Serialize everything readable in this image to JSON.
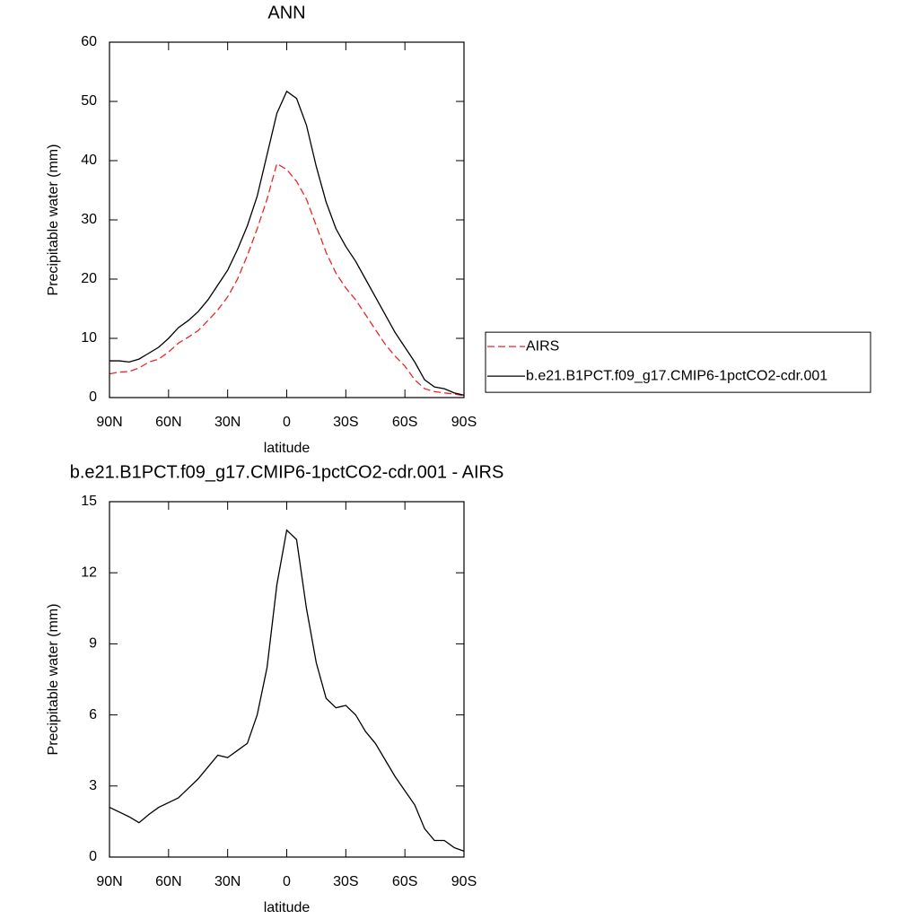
{
  "chart_data": [
    {
      "type": "line",
      "title": "ANN",
      "x_label": "latitude",
      "y_label": "Precipitable water (mm)",
      "x": [
        90,
        85,
        80,
        75,
        70,
        65,
        60,
        55,
        50,
        45,
        40,
        35,
        30,
        25,
        20,
        15,
        10,
        5,
        0,
        -5,
        -10,
        -15,
        -20,
        -25,
        -30,
        -35,
        -40,
        -45,
        -50,
        -55,
        -60,
        -65,
        -70,
        -75,
        -80,
        -85,
        -90
      ],
      "series": [
        {
          "name": "AIRS",
          "color": "#e8262a",
          "dash": true,
          "values": [
            4.0,
            4.3,
            4.4,
            5.0,
            6.0,
            6.5,
            7.7,
            9.2,
            10.2,
            11.3,
            13,
            14.8,
            17,
            20,
            24,
            28.5,
            33.5,
            39.5,
            38.5,
            36.5,
            33.5,
            29,
            24.5,
            21,
            18.5,
            16.5,
            14,
            11.5,
            9,
            7,
            5.3,
            3,
            1.5,
            1.0,
            0.8,
            0.6,
            0.3
          ]
        },
        {
          "name": "b.e21.B1PCT.f09_g17.CMIP6-1pctCO2-cdr.001",
          "color": "#000000",
          "dash": false,
          "values": [
            6.2,
            6.2,
            6.0,
            6.5,
            7.5,
            8.5,
            10,
            11.8,
            13,
            14.5,
            16.5,
            19,
            21.5,
            25,
            29,
            34,
            41,
            48,
            51.7,
            50.5,
            46,
            39,
            33,
            28.5,
            25.5,
            23,
            20,
            17,
            14,
            11,
            8.5,
            6,
            3,
            1.8,
            1.5,
            0.8,
            0.4
          ]
        }
      ],
      "xlim": [
        90,
        -90
      ],
      "xticks": [
        {
          "value": 90,
          "label": "90N"
        },
        {
          "value": 60,
          "label": "60N"
        },
        {
          "value": 30,
          "label": "30N"
        },
        0,
        {
          "value": -30,
          "label": "30S"
        },
        {
          "value": -60,
          "label": "60S"
        },
        {
          "value": -90,
          "label": "90S"
        }
      ],
      "ylim": [
        0,
        60
      ],
      "yticks": [
        0,
        10,
        20,
        30,
        40,
        50,
        60
      ],
      "legend": "right"
    },
    {
      "type": "line",
      "title": "b.e21.B1PCT.f09_g17.CMIP6-1pctCO2-cdr.001 - AIRS",
      "x_label": "latitude",
      "y_label": "Precipitable water (mm)",
      "x": [
        90,
        85,
        80,
        75,
        70,
        65,
        60,
        55,
        50,
        45,
        40,
        35,
        30,
        25,
        20,
        15,
        10,
        5,
        0,
        -5,
        -10,
        -15,
        -20,
        -25,
        -30,
        -35,
        -40,
        -45,
        -50,
        -55,
        -60,
        -65,
        -70,
        -75,
        -80,
        -85,
        -90
      ],
      "series": [
        {
          "color": "#000000",
          "dash": false,
          "values": [
            2.1,
            1.9,
            1.7,
            1.45,
            1.8,
            2.1,
            2.3,
            2.5,
            2.9,
            3.3,
            3.8,
            4.3,
            4.2,
            4.5,
            4.8,
            6.0,
            8.0,
            11.5,
            13.8,
            13.4,
            10.5,
            8.2,
            6.7,
            6.3,
            6.4,
            6.0,
            5.3,
            4.8,
            4.1,
            3.4,
            2.8,
            2.2,
            1.2,
            0.7,
            0.7,
            0.4,
            0.25
          ]
        }
      ],
      "xlim": [
        90,
        -90
      ],
      "xticks": [
        {
          "value": 90,
          "label": "90N"
        },
        {
          "value": 60,
          "label": "60N"
        },
        {
          "value": 30,
          "label": "30N"
        },
        0,
        {
          "value": -30,
          "label": "30S"
        },
        {
          "value": -60,
          "label": "60S"
        },
        {
          "value": -90,
          "label": "90S"
        }
      ],
      "ylim": [
        0,
        15
      ],
      "yticks": [
        0,
        3,
        6,
        9,
        12,
        15
      ]
    }
  ]
}
